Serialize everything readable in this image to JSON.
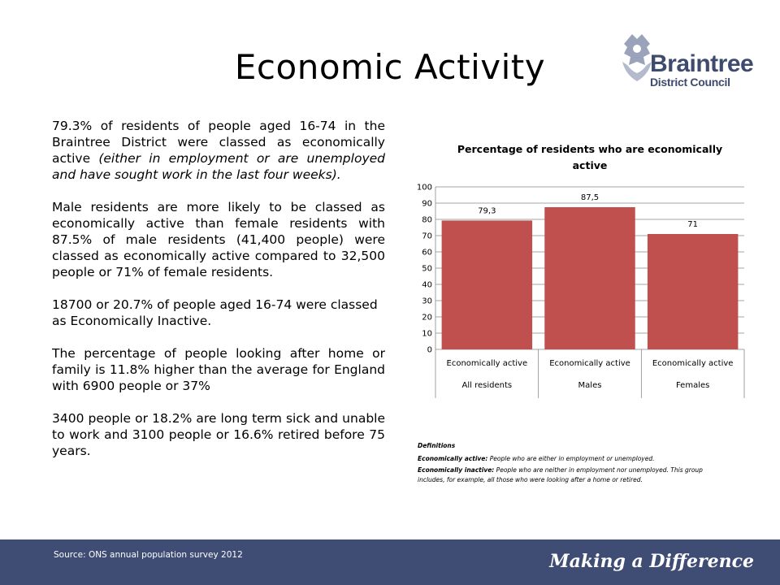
{
  "page": {
    "title": "Economic Activity"
  },
  "logo": {
    "line1": "Braintree",
    "line2": "District Council",
    "color": "#3e4b6e"
  },
  "body": {
    "p1_main": "79.3% of residents of people aged 16-74 in the Braintree District were classed as economically active ",
    "p1_italic": "(either in employment or are unemployed and have sought work in the last four weeks).",
    "p2": "Male residents are more likely to be classed as economically active than female residents with 87.5% of male residents (41,400 people)  were classed as economically active compared to 32,500 people or 71% of female residents.",
    "p3": "18700 or 20.7% of people aged 16-74 were classed as Economically Inactive.",
    "p4": "The percentage of people looking after home or family is 11.8% higher than the average for England with 6900 people or 37%",
    "p5": "3400 people or 18.2% are long term sick and unable to work and 3100 people or 16.6% retired before 75 years."
  },
  "chart_data": {
    "type": "bar",
    "title": "Percentage of residents who are economically active",
    "title_lines": [
      "Percentage of residents who are economically",
      "active"
    ],
    "categories": [
      "Economically active",
      "Economically active",
      "Economically active"
    ],
    "groups": [
      "All residents",
      "Males",
      "Females"
    ],
    "values": [
      79.3,
      87.5,
      71
    ],
    "data_labels": [
      "79,3",
      "87,5",
      "71"
    ],
    "ylim": [
      0,
      100
    ],
    "yticks": [
      0,
      10,
      20,
      30,
      40,
      50,
      60,
      70,
      80,
      90,
      100
    ],
    "grid": true,
    "legend": "none",
    "bar_color": "#c0504d"
  },
  "definitions": {
    "heading": "Definitions",
    "active_term": "Economically active:",
    "active_text": " People who are either in employment or unemployed.",
    "inactive_term": "Economically inactive:",
    "inactive_text": " People who are neither in employment nor unemployed. This group includes, for example, all those who were looking after a home or retired."
  },
  "footer": {
    "source": "Source: ONS annual population survey 2012",
    "tagline": "Making a Difference",
    "bg_color": "#3f4c74"
  }
}
